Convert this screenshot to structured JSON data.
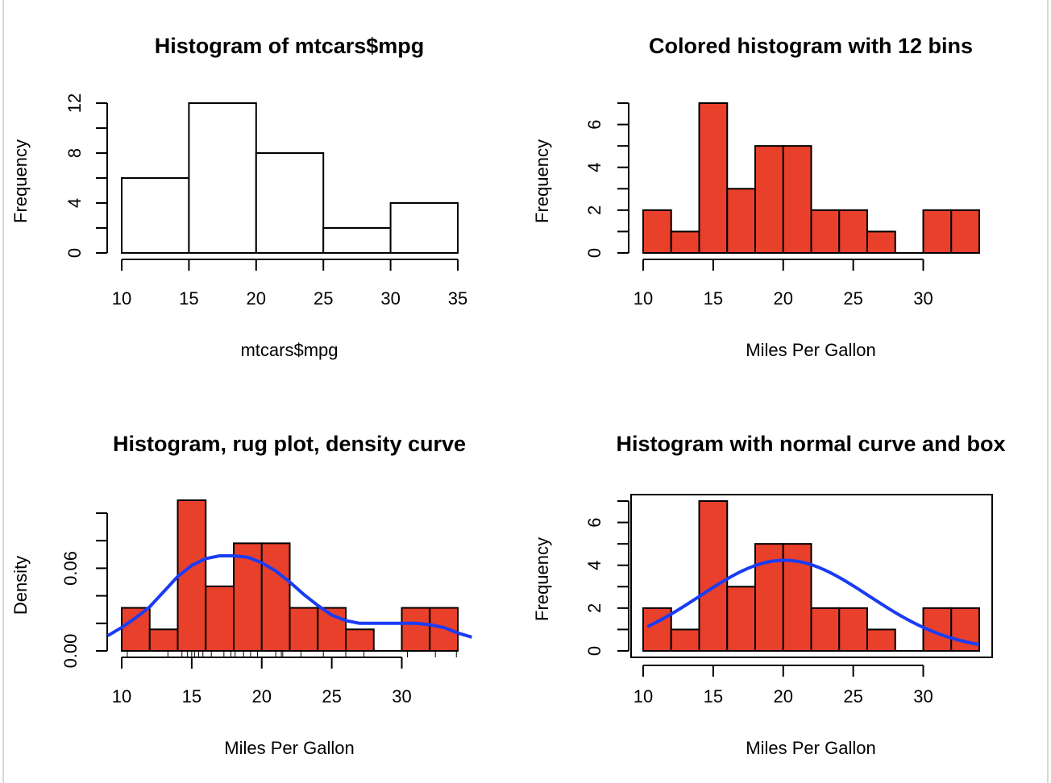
{
  "chart_data": [
    {
      "type": "bar",
      "subtype": "histogram",
      "title": "Histogram of mtcars$mpg",
      "xlabel": "mtcars$mpg",
      "ylabel": "Frequency",
      "breaks": [
        10,
        15,
        20,
        25,
        30,
        35
      ],
      "values": [
        6,
        12,
        8,
        2,
        4
      ],
      "fill": "#ffffff",
      "xticks": [
        10,
        15,
        20,
        25,
        30,
        35
      ],
      "yticks": [
        0,
        4,
        8,
        12
      ],
      "yminor": [
        2,
        6,
        10
      ],
      "xlim": [
        10,
        35
      ],
      "ylim": [
        0,
        12
      ],
      "box": false
    },
    {
      "type": "bar",
      "subtype": "histogram",
      "title": "Colored histogram with 12 bins",
      "xlabel": "Miles Per Gallon",
      "ylabel": "Frequency",
      "breaks": [
        10,
        12,
        14,
        16,
        18,
        20,
        22,
        24,
        26,
        28,
        30,
        32,
        34
      ],
      "values": [
        2,
        1,
        7,
        3,
        5,
        5,
        2,
        2,
        1,
        0,
        2,
        2
      ],
      "fill": "#e8402a",
      "xticks": [
        10,
        15,
        20,
        25,
        30
      ],
      "yticks": [
        0,
        2,
        4,
        6
      ],
      "yminor": [
        1,
        3,
        5,
        7
      ],
      "xlim": [
        10,
        34
      ],
      "ylim": [
        0,
        7
      ],
      "box": false
    },
    {
      "type": "bar",
      "subtype": "histogram-density",
      "title": "Histogram, rug plot, density curve",
      "xlabel": "Miles Per Gallon",
      "ylabel": "Density",
      "breaks": [
        10,
        12,
        14,
        16,
        18,
        20,
        22,
        24,
        26,
        28,
        30,
        32,
        34
      ],
      "values": [
        0.03125,
        0.015625,
        0.109375,
        0.046875,
        0.078125,
        0.078125,
        0.03125,
        0.03125,
        0.015625,
        0,
        0.03125,
        0.03125
      ],
      "fill": "#e8402a",
      "xticks": [
        10,
        15,
        20,
        25,
        30
      ],
      "yticks": [
        0.0,
        0.06
      ],
      "ytick_labels": [
        "0.00",
        "0.06"
      ],
      "yminor": [
        0.02,
        0.04,
        0.08,
        0.1
      ],
      "xlim": [
        10,
        34
      ],
      "ylim": [
        0,
        0.1
      ],
      "rug": [
        10.4,
        13.3,
        14.3,
        14.7,
        15.0,
        15.2,
        15.5,
        15.8,
        16.4,
        17.3,
        17.8,
        18.1,
        18.7,
        19.2,
        19.7,
        21.0,
        21.4,
        21.5,
        22.8,
        24.4,
        26.0,
        27.3,
        30.4,
        32.4,
        33.9
      ],
      "density_curve": {
        "color": "#1a3cf5",
        "x": [
          9,
          10,
          11,
          12,
          13,
          14,
          15,
          16,
          17,
          18,
          19,
          20,
          21,
          22,
          23,
          24,
          25,
          26,
          27,
          28,
          29,
          30,
          31,
          32,
          33,
          34,
          35
        ],
        "y": [
          0.011,
          0.017,
          0.024,
          0.032,
          0.043,
          0.054,
          0.062,
          0.067,
          0.069,
          0.069,
          0.068,
          0.064,
          0.058,
          0.05,
          0.041,
          0.033,
          0.026,
          0.022,
          0.02,
          0.02,
          0.02,
          0.02,
          0.02,
          0.019,
          0.017,
          0.013,
          0.01
        ]
      },
      "box": false
    },
    {
      "type": "bar",
      "subtype": "histogram-normal",
      "title": "Histogram with normal curve and box",
      "xlabel": "Miles Per Gallon",
      "ylabel": "Frequency",
      "breaks": [
        10,
        12,
        14,
        16,
        18,
        20,
        22,
        24,
        26,
        28,
        30,
        32,
        34
      ],
      "values": [
        2,
        1,
        7,
        3,
        5,
        5,
        2,
        2,
        1,
        0,
        2,
        2
      ],
      "fill": "#e8402a",
      "xticks": [
        10,
        15,
        20,
        25,
        30
      ],
      "yticks": [
        0,
        2,
        4,
        6
      ],
      "yminor": [
        1,
        3,
        5,
        7
      ],
      "xlim": [
        10,
        34
      ],
      "ylim": [
        0,
        7
      ],
      "normal_curve": {
        "color": "#1a3cf5",
        "mean": 20.09,
        "sd": 6.03,
        "scale": 64,
        "from": 10.4,
        "to": 33.9
      },
      "box": true
    }
  ]
}
